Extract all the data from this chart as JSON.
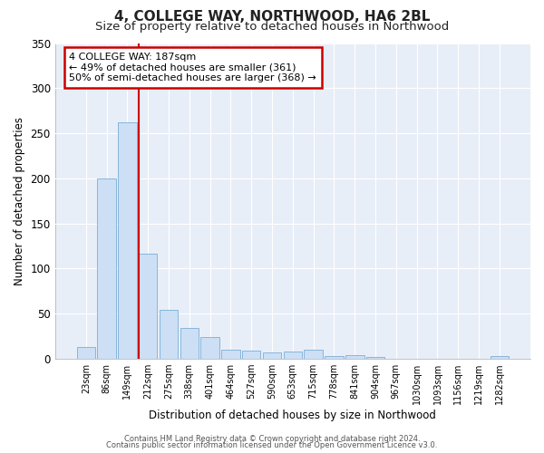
{
  "title": "4, COLLEGE WAY, NORTHWOOD, HA6 2BL",
  "subtitle": "Size of property relative to detached houses in Northwood",
  "xlabel": "Distribution of detached houses by size in Northwood",
  "ylabel": "Number of detached properties",
  "bar_labels": [
    "23sqm",
    "86sqm",
    "149sqm",
    "212sqm",
    "275sqm",
    "338sqm",
    "401sqm",
    "464sqm",
    "527sqm",
    "590sqm",
    "653sqm",
    "715sqm",
    "778sqm",
    "841sqm",
    "904sqm",
    "967sqm",
    "1030sqm",
    "1093sqm",
    "1156sqm",
    "1219sqm",
    "1282sqm"
  ],
  "bar_values": [
    13,
    200,
    262,
    117,
    54,
    34,
    24,
    10,
    9,
    7,
    8,
    10,
    3,
    4,
    2,
    0,
    0,
    0,
    0,
    0,
    3
  ],
  "bar_color": "#ccdff5",
  "bar_edge_color": "#7aaed6",
  "ylim": [
    0,
    350
  ],
  "yticks": [
    0,
    50,
    100,
    150,
    200,
    250,
    300,
    350
  ],
  "red_line_x": 2.55,
  "annotation_title": "4 COLLEGE WAY: 187sqm",
  "annotation_line1": "← 49% of detached houses are smaller (361)",
  "annotation_line2": "50% of semi-detached houses are larger (368) →",
  "footer1": "Contains HM Land Registry data © Crown copyright and database right 2024.",
  "footer2": "Contains public sector information licensed under the Open Government Licence v3.0.",
  "background_color": "#ffffff",
  "plot_bg_color": "#e8eef8",
  "grid_color": "#ffffff",
  "title_fontsize": 11,
  "subtitle_fontsize": 9.5,
  "annotation_box_color": "#ffffff",
  "annotation_box_edge": "#cc0000",
  "red_line_color": "#cc0000"
}
